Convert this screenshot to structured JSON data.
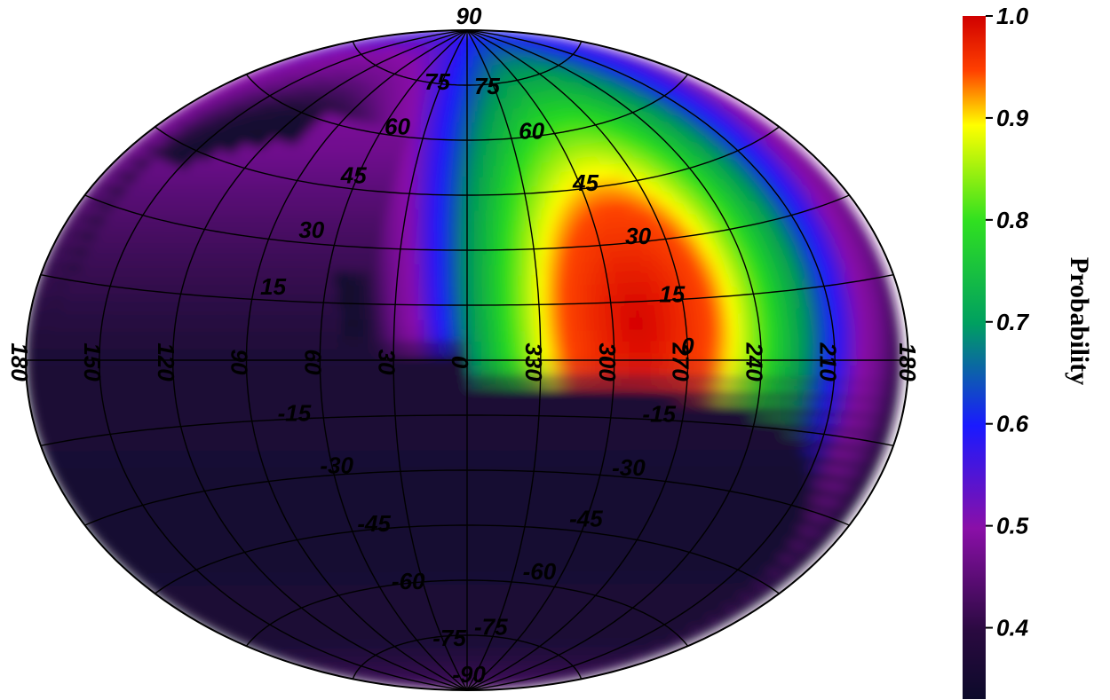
{
  "chart_data": {
    "type": "heatmap",
    "projection": "Aitoff (sky map)",
    "title": "",
    "colorbar": {
      "label": "Probability",
      "ticks": [
        "1.0",
        "0.9",
        "0.8",
        "0.7",
        "0.6",
        "0.5",
        "0.4"
      ],
      "range": [
        0.33,
        1.0
      ],
      "placement": "right",
      "colors": [
        "#0c0a2a",
        "#3a0a4e",
        "#8a0fa8",
        "#1a1aff",
        "#00b040",
        "#30e020",
        "#ffff00",
        "#ff3000",
        "#d40000"
      ]
    },
    "longitude_labels": [
      "180",
      "150",
      "120",
      "90",
      "60",
      "30",
      "0",
      "330",
      "300",
      "270",
      "240",
      "210",
      "180"
    ],
    "longitude_values": [
      180,
      150,
      120,
      90,
      60,
      30,
      0,
      -30,
      -60,
      -90,
      -120,
      -150,
      -180
    ],
    "latitude_labels_left": [
      "75",
      "60",
      "45",
      "30",
      "15",
      "-15",
      "-30",
      "-45",
      "-60",
      "-75"
    ],
    "latitude_labels_right": [
      "75",
      "60",
      "45",
      "30",
      "15",
      "0",
      "-15",
      "-30",
      "-45",
      "-60",
      "-75"
    ],
    "pole_labels": [
      "90",
      "-90"
    ],
    "peak": {
      "longitude": 290,
      "latitude": 10,
      "probability": 1.0
    },
    "grid": true
  }
}
